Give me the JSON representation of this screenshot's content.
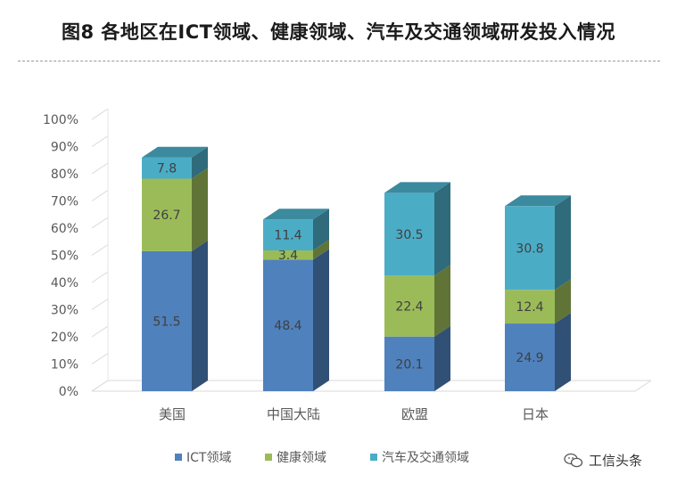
{
  "title": "图8 各地区在ICT领域、健康领域、汽车及交通领域研发投入情况",
  "watermark": "工信头条",
  "chart_data": {
    "type": "bar",
    "stacked": true,
    "three_d": true,
    "categories": [
      "美国",
      "中国大陆",
      "欧盟",
      "日本"
    ],
    "y_ticks": [
      "0%",
      "10%",
      "20%",
      "30%",
      "40%",
      "50%",
      "60%",
      "70%",
      "80%",
      "90%",
      "100%"
    ],
    "ylim": [
      0,
      100
    ],
    "series": [
      {
        "name": "ICT领域",
        "color": "#4F81BD",
        "values": [
          51.5,
          48.4,
          20.1,
          24.9
        ]
      },
      {
        "name": "健康领域",
        "color": "#9BBB59",
        "values": [
          26.7,
          3.4,
          22.4,
          12.4
        ]
      },
      {
        "name": "汽车及交通领域",
        "color": "#4BACC6",
        "values": [
          7.8,
          11.4,
          30.5,
          30.8
        ]
      }
    ],
    "legend_position": "bottom",
    "grid": false
  }
}
